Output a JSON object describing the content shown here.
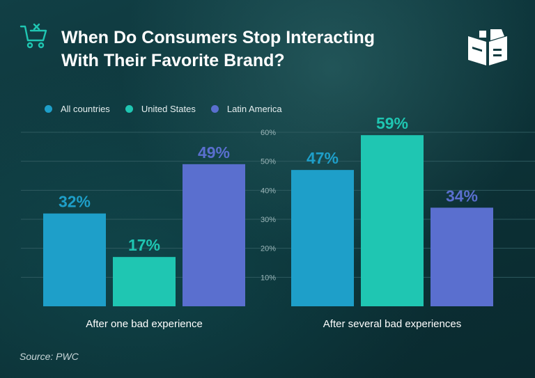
{
  "title_line1": "When Do Consumers Stop Interacting",
  "title_line2": "With Their Favorite Brand?",
  "source": "Source: PWC",
  "icons": {
    "top_left": "shopping-cart-x-icon",
    "top_right": "book-box-logo"
  },
  "colors": {
    "all_countries": "#1e9fc9",
    "united_states": "#1fc6b2",
    "latin_america": "#5a6fcf",
    "grid": "#2e5a5f",
    "tick": "#9db7ba"
  },
  "chart_data": {
    "type": "bar",
    "categories": [
      "After one bad experience",
      "After several bad experiences"
    ],
    "series": [
      {
        "name": "All countries",
        "values": [
          32,
          47
        ],
        "labels": [
          "32%",
          "47%"
        ]
      },
      {
        "name": "United States",
        "values": [
          17,
          59
        ],
        "labels": [
          "17%",
          "59%"
        ]
      },
      {
        "name": "Latin America",
        "values": [
          49,
          34
        ],
        "labels": [
          "49%",
          "34%"
        ]
      }
    ],
    "y_ticks": [
      "10%",
      "20%",
      "30%",
      "40%",
      "50%",
      "60%"
    ],
    "ylim": [
      0,
      60
    ],
    "grid": true,
    "legend": "top-left"
  }
}
